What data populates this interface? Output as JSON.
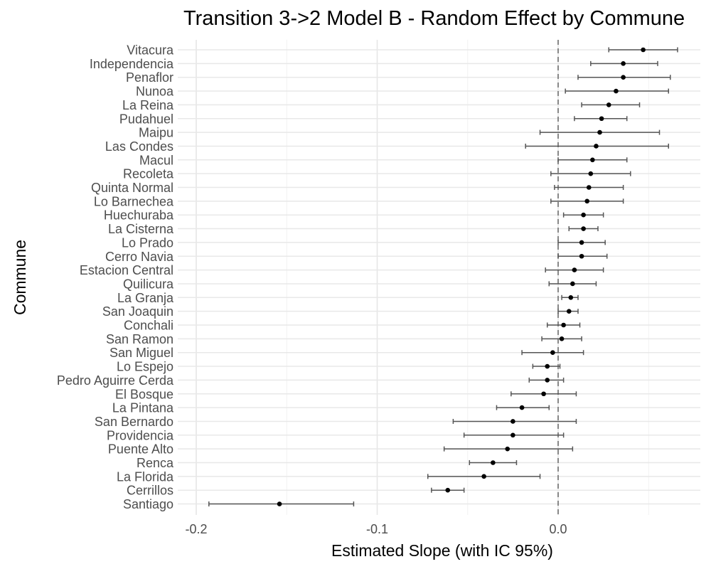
{
  "chart_data": {
    "type": "scatter",
    "title": "Transition 3->2 Model B - Random Effect by Commune",
    "xlabel": "Estimated Slope (with IC 95%)",
    "ylabel": "Commune",
    "xlim": [
      -0.2,
      0.08
    ],
    "x_ticks": [
      "-0.2",
      "-0.1",
      "0.0"
    ],
    "x_tick_values": [
      -0.2,
      -0.1,
      0.0
    ],
    "reference_line": 0.0,
    "grid": true,
    "point_color": "#000000",
    "interval_color": "#555555",
    "reference_line_color": "#666666",
    "categories": [
      "Vitacura",
      "Independencia",
      "Penaflor",
      "Nunoa",
      "La Reina",
      "Pudahuel",
      "Maipu",
      "Las Condes",
      "Macul",
      "Recoleta",
      "Quinta Normal",
      "Lo Barnechea",
      "Huechuraba",
      "La Cisterna",
      "Lo Prado",
      "Cerro Navia",
      "Estacion Central",
      "Quilicura",
      "La Granja",
      "San Joaquin",
      "Conchali",
      "San Ramon",
      "San Miguel",
      "Lo Espejo",
      "Pedro Aguirre Cerda",
      "El Bosque",
      "La Pintana",
      "San Bernardo",
      "Providencia",
      "Puente Alto",
      "Renca",
      "La Florida",
      "Cerrillos",
      "Santiago"
    ],
    "estimates": [
      0.047,
      0.036,
      0.036,
      0.032,
      0.028,
      0.024,
      0.023,
      0.021,
      0.019,
      0.018,
      0.017,
      0.016,
      0.014,
      0.014,
      0.013,
      0.013,
      0.009,
      0.008,
      0.007,
      0.006,
      0.003,
      0.002,
      -0.003,
      -0.006,
      -0.006,
      -0.008,
      -0.02,
      -0.025,
      -0.025,
      -0.028,
      -0.036,
      -0.041,
      -0.061,
      -0.154
    ],
    "lower": [
      0.028,
      0.018,
      0.011,
      0.004,
      0.013,
      0.009,
      -0.01,
      -0.018,
      0.0,
      -0.004,
      -0.002,
      -0.004,
      0.003,
      0.006,
      0.0,
      0.0,
      -0.007,
      -0.005,
      0.002,
      0.0,
      -0.006,
      -0.009,
      -0.02,
      -0.014,
      -0.016,
      -0.026,
      -0.034,
      -0.058,
      -0.052,
      -0.063,
      -0.049,
      -0.072,
      -0.07,
      -0.193
    ],
    "upper": [
      0.066,
      0.055,
      0.062,
      0.061,
      0.045,
      0.038,
      0.056,
      0.061,
      0.038,
      0.04,
      0.036,
      0.036,
      0.025,
      0.022,
      0.026,
      0.027,
      0.025,
      0.021,
      0.011,
      0.011,
      0.012,
      0.013,
      0.014,
      0.001,
      0.003,
      0.01,
      -0.005,
      0.01,
      0.003,
      0.008,
      -0.023,
      -0.01,
      -0.052,
      -0.113
    ]
  }
}
